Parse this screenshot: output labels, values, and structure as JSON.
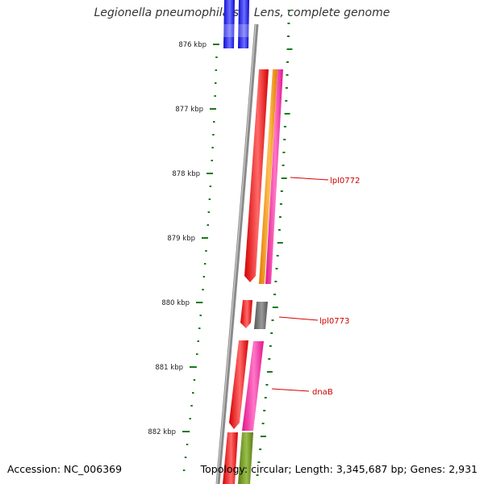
{
  "map": {
    "title": "Legionella pneumophila str. Lens, complete genome",
    "accession": "Accession: NC_006369",
    "topology": "Topology: circular; Length: 3,345,687 bp; Genes: 2,931",
    "scale_unit": "kbp",
    "axis_ticks": [
      {
        "label": "876 kbp"
      },
      {
        "label": "877 kbp"
      },
      {
        "label": "878 kbp"
      },
      {
        "label": "879 kbp"
      },
      {
        "label": "880 kbp"
      },
      {
        "label": "881 kbp"
      },
      {
        "label": "882 kbp"
      }
    ],
    "gene_labels": [
      "lpl0772",
      "lpl0773",
      "dnaB"
    ],
    "colors": {
      "backbone": "#8c8c8c",
      "ticks": "#1a7a1a",
      "label_lines": "#d40000",
      "blue": "#1010ee",
      "red": "#ee0000",
      "orange": "#f08c00",
      "magenta": "#ee2299",
      "gray": "#6a6a6a",
      "olive": "#6b8e23"
    }
  }
}
